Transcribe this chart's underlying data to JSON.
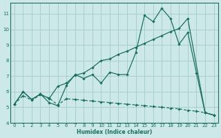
{
  "xlabel": "Humidex (Indice chaleur)",
  "bg_color": "#cce8e8",
  "grid_color": "#a8cece",
  "line_color": "#1a6e60",
  "xlim": [
    -0.5,
    23.5
  ],
  "ylim": [
    4,
    11.7
  ],
  "xticks": [
    0,
    1,
    2,
    3,
    4,
    5,
    6,
    7,
    8,
    9,
    10,
    11,
    12,
    13,
    14,
    15,
    16,
    17,
    18,
    19,
    20,
    21,
    22,
    23
  ],
  "yticks": [
    4,
    5,
    6,
    7,
    8,
    9,
    10,
    11
  ],
  "line1_x": [
    0,
    1,
    2,
    3,
    4,
    5,
    6,
    7,
    8,
    9,
    10,
    11,
    12,
    13,
    14,
    15,
    16,
    17,
    18,
    19,
    20,
    21,
    22,
    23
  ],
  "line1_y": [
    5.2,
    6.0,
    5.5,
    5.85,
    5.3,
    5.1,
    6.4,
    7.1,
    6.85,
    7.1,
    6.55,
    7.25,
    7.1,
    7.1,
    8.5,
    10.9,
    10.5,
    11.35,
    10.7,
    9.05,
    9.8,
    7.2,
    4.65,
    4.5
  ],
  "line2_x": [
    0,
    1,
    2,
    3,
    4,
    5,
    6,
    7,
    8,
    9,
    10,
    11,
    12,
    13,
    14,
    15,
    16,
    17,
    18,
    19,
    20,
    22,
    23
  ],
  "line2_y": [
    5.2,
    6.0,
    5.5,
    5.85,
    5.55,
    6.35,
    6.55,
    7.05,
    7.2,
    7.55,
    8.0,
    8.1,
    8.4,
    8.6,
    8.85,
    9.1,
    9.35,
    9.6,
    9.85,
    10.05,
    10.7,
    4.65,
    4.5
  ],
  "line3_x": [
    0,
    1,
    2,
    3,
    4,
    5,
    6,
    7,
    8,
    9,
    10,
    11,
    12,
    13,
    14,
    15,
    16,
    17,
    18,
    19,
    20,
    21,
    22,
    23
  ],
  "line3_y": [
    5.2,
    5.75,
    5.45,
    5.8,
    5.6,
    5.15,
    5.55,
    5.5,
    5.45,
    5.4,
    5.35,
    5.3,
    5.25,
    5.2,
    5.15,
    5.1,
    5.05,
    5.0,
    4.95,
    4.9,
    4.8,
    4.75,
    4.65,
    4.5
  ]
}
